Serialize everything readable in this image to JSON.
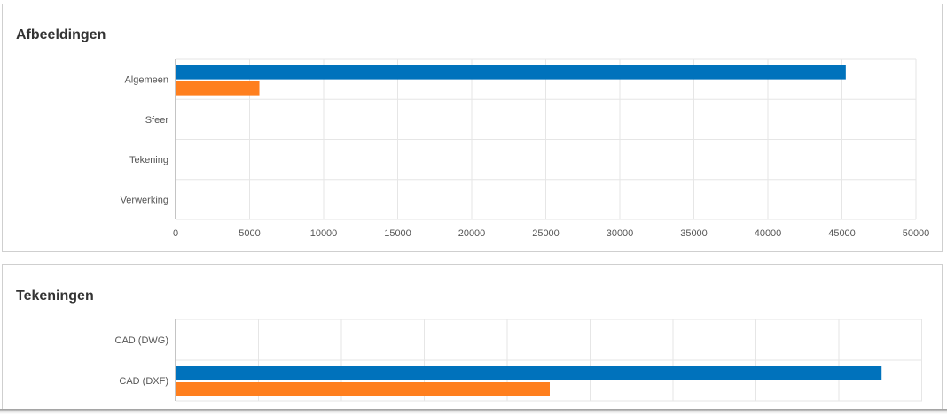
{
  "panels": [
    {
      "title": "Afbeeldingen"
    },
    {
      "title": "Tekeningen"
    }
  ],
  "colors": {
    "series_blue": "#0072bc",
    "series_orange": "#ff7f1e",
    "grid": "#e6e6e6",
    "axis": "#888888"
  },
  "chart_data": [
    {
      "type": "bar",
      "orientation": "horizontal",
      "title": "Afbeeldingen",
      "categories": [
        "Algemeen",
        "Sfeer",
        "Tekening",
        "Verwerking"
      ],
      "series": [
        {
          "values": [
            45200,
            0,
            0,
            0
          ],
          "color": "#0072bc"
        },
        {
          "values": [
            5600,
            0,
            0,
            0
          ],
          "color": "#ff7f1e"
        }
      ],
      "xlim": [
        0,
        50000
      ],
      "xticks": [
        0,
        5000,
        10000,
        15000,
        20000,
        25000,
        30000,
        35000,
        40000,
        45000,
        50000
      ],
      "grid": true
    },
    {
      "type": "bar",
      "orientation": "horizontal",
      "title": "Tekeningen",
      "categories": [
        "CAD (DWG)",
        "CAD (DXF)"
      ],
      "series": [
        {
          "values": [
            0,
            42500
          ],
          "color": "#0072bc"
        },
        {
          "values": [
            0,
            22500
          ],
          "color": "#ff7f1e"
        }
      ],
      "xlim": [
        0,
        45000
      ],
      "grid": true
    }
  ]
}
